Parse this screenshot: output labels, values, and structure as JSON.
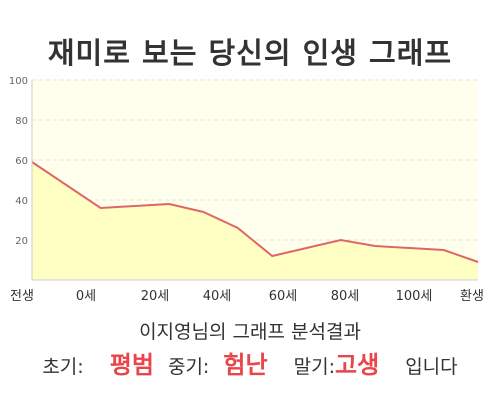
{
  "title": "재미로 보는 당신의 인생 그래프",
  "subtitle": "이지영님의 그래프 분석결과",
  "result": {
    "early_label": "초기:",
    "early_value": "평범",
    "mid_label": "중기:",
    "mid_value": "험난",
    "late_label": "말기:",
    "late_value": "고생",
    "suffix": "입니다"
  },
  "colors": {
    "line": "#e06666",
    "fill": "#ffffc4",
    "highlight": "#e8464a"
  },
  "chart_data": {
    "type": "area",
    "x_labels": [
      "전생",
      "0세",
      "20세",
      "40세",
      "60세",
      "80세",
      "100세",
      "환생"
    ],
    "x": [
      -20,
      0,
      10,
      20,
      30,
      40,
      50,
      60,
      70,
      80,
      90,
      100,
      110
    ],
    "y": [
      59,
      36,
      37,
      38,
      34,
      26,
      12,
      16,
      20,
      17,
      16,
      15,
      9
    ],
    "ylim": [
      0,
      100
    ],
    "y_ticks": [
      "20",
      "40",
      "60",
      "80",
      "100"
    ],
    "grid": true
  }
}
